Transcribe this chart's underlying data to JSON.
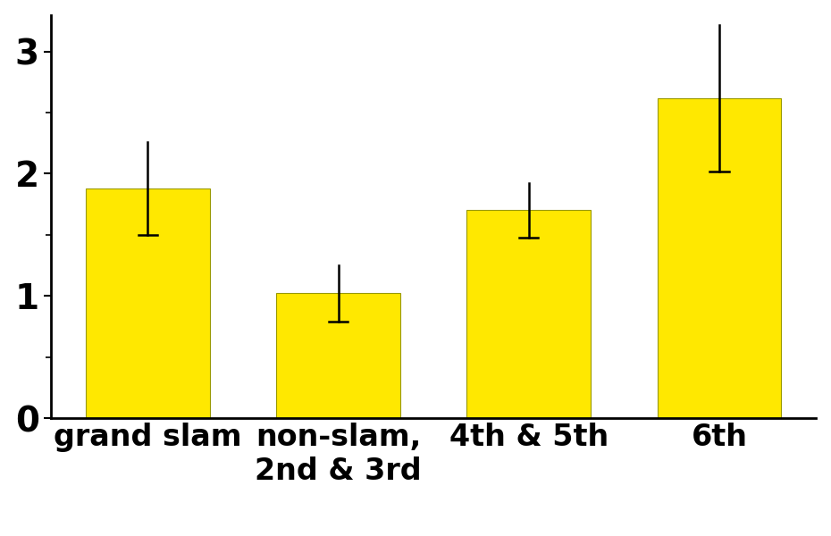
{
  "categories": [
    "grand slam",
    "non-slam,\n2nd & 3rd",
    "4th & 5th",
    "6th"
  ],
  "values": [
    1.88,
    1.02,
    1.7,
    2.62
  ],
  "errors": [
    0.38,
    0.23,
    0.22,
    0.6
  ],
  "bar_color": "#FFE800",
  "bar_edgecolor": "#999900",
  "error_color": "black",
  "ylim": [
    0,
    3.3
  ],
  "yticks": [
    0,
    1,
    2,
    3
  ],
  "tick_fontsize": 28,
  "label_fontsize": 24,
  "bar_width": 0.65,
  "background_color": "#ffffff"
}
